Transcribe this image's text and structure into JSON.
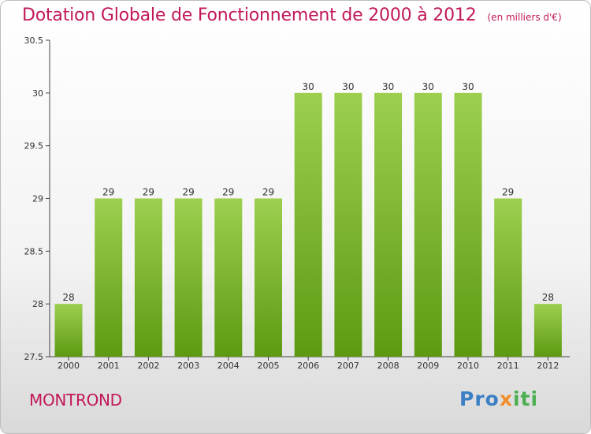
{
  "title": "Dotation Globale de Fonctionnement de 2000 à 2012",
  "unit_note": "(en milliers d'€)",
  "commune": "MONTROND",
  "logo_text": "Proxiti",
  "colors": {
    "title": "#c2185b",
    "bar_top": "#9ccf4f",
    "bar_bottom": "#5d9a12",
    "axis": "#444444"
  },
  "chart_data": {
    "type": "bar",
    "title": "Dotation Globale de Fonctionnement de 2000 à 2012",
    "subtitle": "(en milliers d'€)",
    "categories": [
      "2000",
      "2001",
      "2002",
      "2003",
      "2004",
      "2005",
      "2006",
      "2007",
      "2008",
      "2009",
      "2010",
      "2011",
      "2012"
    ],
    "values": [
      28,
      29,
      29,
      29,
      29,
      29,
      30,
      30,
      30,
      30,
      30,
      29,
      28
    ],
    "data_labels": [
      "28",
      "29",
      "29",
      "29",
      "29",
      "29",
      "30",
      "30",
      "30",
      "30",
      "30",
      "29",
      "28"
    ],
    "yticks": [
      "27.5",
      "28",
      "28.5",
      "29",
      "29.5",
      "30",
      "30.5"
    ],
    "ylim": [
      27.5,
      30.5
    ],
    "grid": false,
    "legend": "none"
  }
}
